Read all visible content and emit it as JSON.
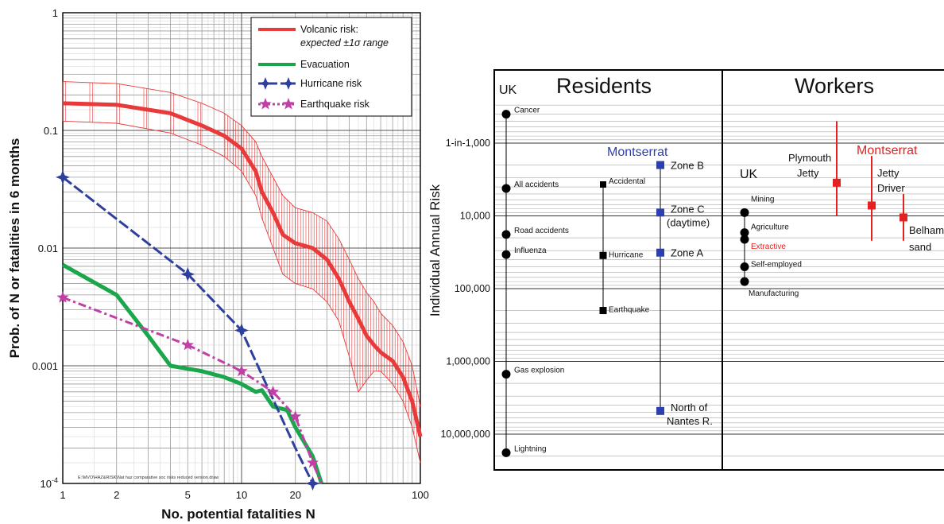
{
  "chart_data": [
    {
      "type": "line",
      "x_scale": "log",
      "y_scale": "log",
      "xlim": [
        1,
        100
      ],
      "ylim": [
        0.0001,
        1
      ],
      "xlabel": "No. potential fatalities N",
      "ylabel": "Prob. of N or fatalities in 6 months",
      "x_ticks": [
        "1",
        "2",
        "5",
        "10",
        "20",
        "100"
      ],
      "y_ticks": [
        "1",
        "0.1",
        "0.01",
        "0.001",
        "10-4"
      ],
      "legend_position": "top-right",
      "footnote": "E:\\MVO\\HAZ&RISK\\Nat haz comparative soc risks reduced version.draw",
      "legend": [
        {
          "line1": "Volcanic risk:",
          "line2": "expected ±1σ range",
          "color": "#e83a3a"
        },
        {
          "line1": "Evacuation",
          "line2": "",
          "color": "#1aa64a"
        },
        {
          "line1": "Hurricane risk",
          "line2": "",
          "color": "#2e3f9e"
        },
        {
          "line1": "Earthquake risk",
          "line2": "",
          "color": "#c23fa6"
        }
      ],
      "series": [
        {
          "name": "Volcanic risk",
          "color": "#e83a3a",
          "x": [
            1,
            2,
            4,
            6,
            8,
            10,
            12,
            13,
            15,
            17,
            20,
            25,
            30,
            35,
            40,
            45,
            50,
            55,
            60,
            70,
            80,
            90,
            100
          ],
          "y": [
            0.17,
            0.165,
            0.14,
            0.11,
            0.09,
            0.07,
            0.045,
            0.03,
            0.02,
            0.013,
            0.011,
            0.01,
            0.008,
            0.0055,
            0.0035,
            0.0025,
            0.0018,
            0.0015,
            0.0013,
            0.0011,
            0.0008,
            0.0005,
            0.00025
          ],
          "upper": [
            0.26,
            0.25,
            0.21,
            0.17,
            0.14,
            0.11,
            0.08,
            0.06,
            0.04,
            0.028,
            0.022,
            0.02,
            0.017,
            0.012,
            0.008,
            0.0055,
            0.0042,
            0.0035,
            0.0028,
            0.0022,
            0.0016,
            0.001,
            0.00045
          ],
          "lower": [
            0.12,
            0.115,
            0.095,
            0.075,
            0.06,
            0.045,
            0.028,
            0.018,
            0.01,
            0.006,
            0.005,
            0.0045,
            0.0035,
            0.0024,
            0.0012,
            0.0006,
            0.00075,
            0.0009,
            0.0009,
            0.0007,
            0.0005,
            0.0003,
            0.00015
          ]
        },
        {
          "name": "Evacuation",
          "color": "#1aa64a",
          "x": [
            1,
            2,
            3,
            4,
            6,
            8,
            10,
            12,
            13,
            15,
            18,
            20,
            25,
            28
          ],
          "y": [
            0.0072,
            0.004,
            0.0018,
            0.001,
            0.0009,
            0.0008,
            0.0007,
            0.0006,
            0.00062,
            0.00045,
            0.00042,
            0.0003,
            0.00017,
            0.0001
          ]
        },
        {
          "name": "Hurricane risk",
          "color": "#2e3f9e",
          "x": [
            1,
            5,
            10,
            20,
            25
          ],
          "y": [
            0.04,
            0.006,
            0.002,
            0.0002,
            0.0001
          ],
          "markers_x": [
            1,
            5,
            10,
            25
          ],
          "markers_y": [
            0.04,
            0.006,
            0.002,
            0.0001
          ]
        },
        {
          "name": "Earthquake risk",
          "color": "#c23fa6",
          "x": [
            1,
            5,
            10,
            15,
            20,
            25,
            28
          ],
          "y": [
            0.0038,
            0.0015,
            0.0009,
            0.0006,
            0.00037,
            0.00015,
            0.0001
          ],
          "markers_x": [
            1,
            5,
            10,
            15,
            20,
            25
          ],
          "markers_y": [
            0.0038,
            0.0015,
            0.0009,
            0.0006,
            0.00037,
            0.00015
          ]
        }
      ]
    },
    {
      "type": "scatter",
      "y_scale": "log",
      "ylabel": "Individual Annual Risk",
      "y_ticks": [
        "1-in-1,000",
        "10,000",
        "100,000",
        "1,000,000",
        "10,000,000"
      ],
      "panels": [
        "Residents",
        "Workers"
      ],
      "residents_uk": {
        "heading": "UK",
        "color": "#000000",
        "points": [
          {
            "label": "Cancer",
            "one_in": 400
          },
          {
            "label": "All accidents",
            "one_in": 4200
          },
          {
            "label": "Road accidents",
            "one_in": 18000
          },
          {
            "label": "Influenza",
            "one_in": 34000
          },
          {
            "label": "Gas explosion",
            "one_in": 1500000
          },
          {
            "label": "Lightning",
            "one_in": 18000000
          }
        ]
      },
      "residents_montserrat": {
        "heading": "Montserrat",
        "color": "#2d3fae",
        "hazard_points": [
          {
            "label": "Accidental",
            "one_in": 3700
          },
          {
            "label": "Hurricane",
            "one_in": 35000
          },
          {
            "label": "Earthquake",
            "one_in": 200000
          }
        ],
        "volcanic_points": [
          {
            "label": "Zone B",
            "one_in": 2000
          },
          {
            "label": "Zone C",
            "label2": "(daytime)",
            "one_in": 9000
          },
          {
            "label": "Zone A",
            "one_in": 32000
          },
          {
            "label": "North of",
            "label2": "Nantes R.",
            "one_in": 4800000
          }
        ]
      },
      "workers_uk": {
        "heading": "UK",
        "color": "#000000",
        "points": [
          {
            "label": "Mining",
            "one_in": 9000
          },
          {
            "label": "Agriculture",
            "one_in": 17000
          },
          {
            "label": "Extractive",
            "one_in": 21000,
            "color": "#e52020"
          },
          {
            "label": "Self-employed",
            "one_in": 50000
          },
          {
            "label": "Manufacturing",
            "one_in": 80000
          }
        ]
      },
      "workers_montserrat": {
        "heading": "Montserrat",
        "color": "#e52020",
        "points": [
          {
            "label": "Plymouth",
            "label2": "Jetty",
            "one_in": 3500,
            "err_hi": 500,
            "err_lo": 10000
          },
          {
            "label": "Jetty",
            "label2": "Driver",
            "one_in": 7200,
            "err_hi": 1500,
            "err_lo": 22000
          },
          {
            "label": "Belham",
            "label2": "sand",
            "one_in": 10500,
            "err_hi": 5000,
            "err_lo": 22000
          }
        ]
      }
    }
  ]
}
